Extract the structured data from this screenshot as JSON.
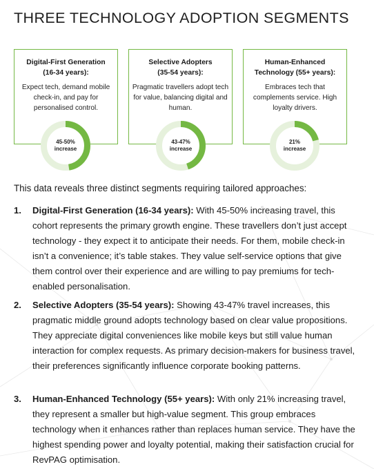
{
  "title": "THREE TECHNOLOGY ADOPTION SEGMENTS",
  "cards": [
    {
      "heading_line1": "Digital-First Generation",
      "heading_line2": "(16-34 years):",
      "desc": "Expect tech, demand mobile check-in, and pay for personalised control.",
      "donut_value": "45-50%",
      "donut_unit": "increase",
      "fill_fraction": 0.475
    },
    {
      "heading_line1": "Selective Adopters",
      "heading_line2": "(35-54 years):",
      "desc": "Pragmatic travellers adopt tech for value, balancing digital and human.",
      "donut_value": "43-47%",
      "donut_unit": "increase",
      "fill_fraction": 0.45
    },
    {
      "heading_line1": "Human-Enhanced",
      "heading_line2": "Technology (55+ years):",
      "desc": "Embraces tech that complements service. High loyalty drivers.",
      "donut_value": "21%",
      "donut_unit": "increase",
      "fill_fraction": 0.21
    }
  ],
  "intro": "This data reveals three distinct segments requiring tailored approaches:",
  "segments": [
    {
      "number": "1.",
      "title": "Digital-First Generation (16-34 years):",
      "body": " With 45-50% increasing travel, this cohort represents the primary growth engine. These travellers don’t just accept technology - they expect it to anticipate their needs. For them, mobile check-in isn’t a convenience; it’s table stakes. They value self-service options that give them control over their experience and are willing to pay premiums for tech-enabled personalisation."
    },
    {
      "number": "2.",
      "title": "Selective Adopters (35-54 years):",
      "body": " Showing 43-47% travel increases, this pragmatic middle ground adopts technology based on clear value propositions. They appreciate digital conveniences like mobile keys but still value human interaction for complex requests. As primary decision-makers for business travel, their preferences significantly influence corporate booking patterns."
    },
    {
      "number": "3.",
      "title": "Human-Enhanced Technology (55+ years):",
      "body": " With only 21% increasing travel, they represent a smaller but high-value segment. This group embraces technology when it enhances rather than replaces human service. They have the highest spending power and loyalty potential, making their satisfaction crucial for RevPAG optimisation."
    }
  ],
  "colors": {
    "accent": "#74b843",
    "ring_track": "#e6f1dc",
    "text": "#1c1c1c"
  }
}
